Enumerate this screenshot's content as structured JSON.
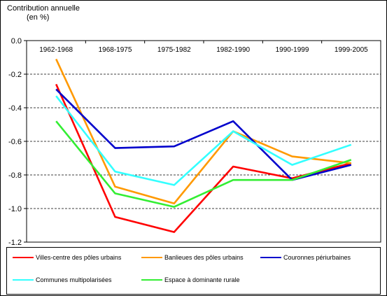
{
  "chart_data": {
    "type": "line",
    "ylabel_lines": [
      "Contribution annuelle",
      "(en %)"
    ],
    "categories": [
      "1962-1968",
      "1968-1975",
      "1975-1982",
      "1982-1990",
      "1990-1999",
      "1999-2005"
    ],
    "ylim": [
      -1.2,
      0.0
    ],
    "yticks": [
      0.0,
      -0.2,
      -0.4,
      -0.6,
      -0.8,
      -1.0,
      -1.2
    ],
    "ytick_labels": [
      "0.0",
      "-0.2",
      "-0.4",
      "-0.6",
      "-0.8",
      "-1.0",
      "-1.2"
    ],
    "grid": "horizontal dashed",
    "x_axis_position": "top",
    "legend_position": "bottom",
    "series": [
      {
        "name": "Villes-centre des pôles urbains",
        "color": "#ff0000",
        "values": [
          -0.26,
          -1.05,
          -1.14,
          -0.75,
          -0.82,
          -0.73
        ]
      },
      {
        "name": "Banlieues des pôles urbains",
        "color": "#ff9900",
        "values": [
          -0.11,
          -0.87,
          -0.97,
          -0.54,
          -0.69,
          -0.73
        ]
      },
      {
        "name": "Couronnes périurbaines",
        "color": "#0000cc",
        "values": [
          -0.29,
          -0.64,
          -0.63,
          -0.48,
          -0.83,
          -0.74
        ]
      },
      {
        "name": "Communes multipolarisées",
        "color": "#33ffff",
        "values": [
          -0.33,
          -0.78,
          -0.86,
          -0.54,
          -0.74,
          -0.62
        ]
      },
      {
        "name": "Espace à dominante rurale",
        "color": "#33ee33",
        "values": [
          -0.48,
          -0.91,
          -0.99,
          -0.83,
          -0.83,
          -0.71
        ]
      }
    ]
  }
}
